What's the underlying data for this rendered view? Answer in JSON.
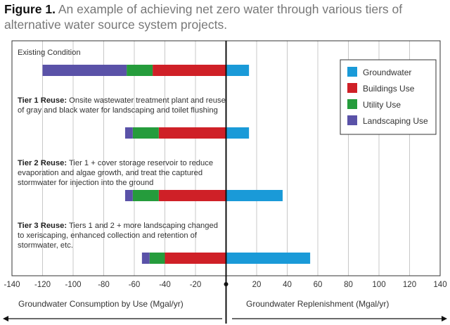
{
  "figure_label": "Figure 1.",
  "figure_caption": "An example of achieving net zero water through various tiers of alternative water source system projects.",
  "colors": {
    "groundwater": "#1a9ad8",
    "buildings": "#cf2027",
    "utility": "#259c3c",
    "landscaping": "#5a52a8"
  },
  "chart_data": {
    "type": "bar",
    "orientation": "horizontal",
    "stacked": true,
    "xlim": [
      -140,
      140
    ],
    "xticks": [
      -140,
      -120,
      -100,
      -80,
      -60,
      -40,
      -20,
      0,
      20,
      40,
      60,
      80,
      100,
      120,
      140
    ],
    "grid": "vertical",
    "xlabel_left": "Groundwater Consumption by Use (Mgal/yr)",
    "xlabel_right": "Groundwater Replenishment (Mgal/yr)",
    "legend_position": "top-right",
    "legend": [
      "Groundwater",
      "Buildings Use",
      "Utility Use",
      "Landscaping Use"
    ],
    "categories": [
      {
        "bold": "",
        "text": "Existing Condition",
        "lines": [
          "Existing Condition"
        ]
      },
      {
        "bold": "Tier 1 Reuse:",
        "text": "Onsite wastewater treatment plant and reuse of gray and black water for landscaping and toilet flushing",
        "lines": [
          " Onsite wastewater treatment plant and reuse",
          "of gray and black water for landscaping and toilet flushing"
        ]
      },
      {
        "bold": "Tier 2 Reuse:",
        "text": "Tier 1 + cover storage reservoir to reduce evaporation and algae growth, and treat the captured stormwater for injection into the ground",
        "lines": [
          " Tier 1 + cover storage reservoir to reduce",
          "evaporation and algae growth, and treat the captured",
          "stormwater for injection into the ground"
        ]
      },
      {
        "bold": "Tier 3 Reuse:",
        "text": "Tiers 1 and 2 + more landscaping changed to xeriscaping, enhanced collection and retention of stormwater, etc.",
        "lines": [
          " Tiers 1 and 2 + more landscaping changed",
          "to xeriscaping, enhanced collection and retention of",
          "stormwater, etc."
        ]
      }
    ],
    "series": [
      {
        "name": "Groundwater",
        "values": [
          15,
          15,
          37,
          55
        ]
      },
      {
        "name": "Buildings Use",
        "values": [
          -48,
          -44,
          -44,
          -40
        ]
      },
      {
        "name": "Utility Use",
        "values": [
          -17,
          -17,
          -17,
          -10
        ]
      },
      {
        "name": "Landscaping Use",
        "values": [
          -55,
          -5,
          -5,
          -5
        ]
      }
    ]
  }
}
